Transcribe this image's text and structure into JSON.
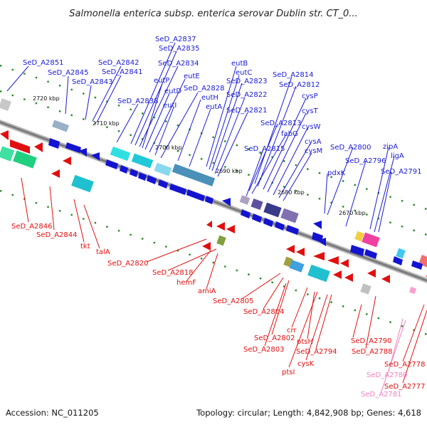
{
  "title": "Salmonella enterica subsp. enterica serovar Dublin str. CT_0...",
  "accession": "Accession: NC_011205",
  "summary": "Topology: circular; Length: 4,842,908 bp; Genes: 4,618",
  "colors": {
    "forward_label": "#1a1ad0",
    "reverse_label": "#e01010",
    "rna_label": "#f080c0",
    "backbone": "#888888"
  },
  "kbp_labels": [
    "2720 kbp",
    "2710 kbp",
    "2700 kbp",
    "2690 kbp",
    "2680 kbp",
    "2670 kbp"
  ],
  "forward_genes": [
    "SeD_A2851",
    "SeD_A2845",
    "SeD_A2843",
    "SeD_A2842",
    "SeD_A2841",
    "SeD_A2837",
    "SeD_A2835",
    "SeD_A2834",
    "SeD_A2838",
    "eutP",
    "eutD",
    "eutE",
    "eutI",
    "SeD_A2828",
    "eutH",
    "eutA",
    "eutB",
    "eutC",
    "SeD_A2823",
    "SeD_A2822",
    "SeD_A2821",
    "SeD_A2814",
    "SeD_A2812",
    "cysP",
    "cysT",
    "cysW",
    "cysA",
    "cysM",
    "SeD_A2813",
    "fabG",
    "SeD_A2815",
    "pdxK",
    "SeD_A2800",
    "SeD_A2796",
    "zipA",
    "ligA",
    "SeD_A2791"
  ],
  "reverse_genes": [
    "SeD_A2846",
    "SeD_A2844",
    "tkt",
    "talA",
    "SeD_A2820",
    "SeD_A2818",
    "hemF",
    "amiA",
    "SeD_A2805",
    "SeD_A2804",
    "SeD_A2802",
    "SeD_A2803",
    "crr",
    "ptsH",
    "ptsI",
    "cysK",
    "SeD_A2794",
    "SeD_A2790",
    "SeD_A2788",
    "SeD_A2778",
    "SeD_A2777"
  ],
  "rna_genes": [
    "SeD_A2780",
    "SeD_A2781"
  ]
}
